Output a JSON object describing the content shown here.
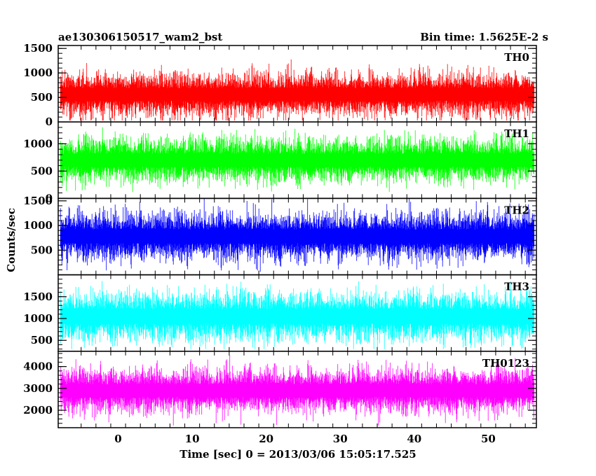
{
  "chart_data": {
    "type": "line",
    "title_left": "ae130306150517_wam2_bst",
    "title_right": "Bin time: 1.5625E-2 s",
    "xlabel": "Time [sec] 0 = 2013/03/06 15:05:17.525",
    "ylabel": "Counts/sec",
    "xlim": [
      -8.1,
      56.5
    ],
    "data_x_range": [
      -7.8,
      56.2
    ],
    "x_ticks": [
      0,
      10,
      20,
      30,
      40,
      50
    ],
    "x_tick_labels": [
      "0",
      "10",
      "20",
      "30",
      "40",
      "50"
    ],
    "series": [
      {
        "name": "TH0",
        "color": "#ff0000",
        "ylim": [
          0,
          1560
        ],
        "yticks": [
          0,
          500,
          1000,
          1500
        ],
        "ytick_labels": [
          "0",
          "500",
          "1000",
          "1500"
        ],
        "mean": 560,
        "spread": 230,
        "min": 30,
        "max": 1560
      },
      {
        "name": "TH1",
        "color": "#00ff00",
        "ylim": [
          0,
          1400
        ],
        "yticks": [
          0,
          500,
          1000
        ],
        "ytick_labels": [
          "0",
          "500",
          "1000"
        ],
        "mean": 700,
        "spread": 210,
        "min": 30,
        "max": 1380
      },
      {
        "name": "TH2",
        "color": "#0000ff",
        "ylim": [
          0,
          1550
        ],
        "yticks": [
          500,
          1000,
          1500
        ],
        "ytick_labels": [
          "500",
          "1000",
          "1500"
        ],
        "mean": 780,
        "spread": 250,
        "min": 60,
        "max": 1550
      },
      {
        "name": "TH3",
        "color": "#00ffff",
        "ylim": [
          250,
          2000
        ],
        "yticks": [
          500,
          1000,
          1500
        ],
        "ytick_labels": [
          "500",
          "1000",
          "1500"
        ],
        "mean": 1050,
        "spread": 290,
        "min": 300,
        "max": 1980
      },
      {
        "name": "TH0123",
        "color": "#ff00ff",
        "ylim": [
          1200,
          4700
        ],
        "yticks": [
          2000,
          3000,
          4000
        ],
        "ytick_labels": [
          "2000",
          "3000",
          "4000"
        ],
        "mean": 2900,
        "spread": 520,
        "min": 1300,
        "max": 4650
      }
    ]
  }
}
